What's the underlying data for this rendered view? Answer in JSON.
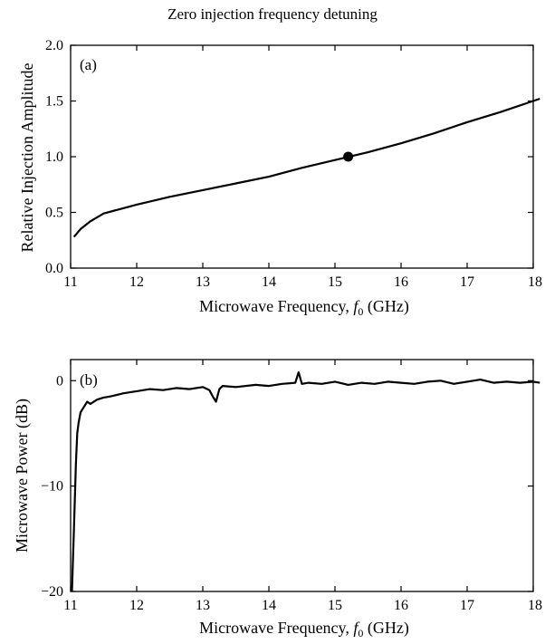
{
  "figure": {
    "title": "Zero injection frequency detuning"
  },
  "chart_data": [
    {
      "type": "line",
      "panel_label": "(a)",
      "xlabel_text": "Microwave Frequency, ",
      "xlabel_var": "f",
      "xlabel_sub": "0",
      "xlabel_unit": " (GHz)",
      "ylabel": "Relative Injection Amplitude",
      "xlim": [
        11,
        18
      ],
      "ylim": [
        0,
        2.0
      ],
      "xticks": [
        11,
        12,
        13,
        14,
        15,
        16,
        17,
        18
      ],
      "yticks": [
        0.0,
        0.5,
        1.0,
        1.5,
        2.0
      ],
      "ytick_labels": [
        "0.0",
        "0.5",
        "1.0",
        "1.5",
        "2.0"
      ],
      "grid": false,
      "series": [
        {
          "x": [
            11.05,
            11.15,
            11.3,
            11.5,
            12.0,
            12.5,
            13.0,
            13.5,
            14.0,
            14.5,
            15.0,
            15.5,
            16.0,
            16.5,
            17.0,
            17.5,
            18.0,
            18.1
          ],
          "y": [
            0.28,
            0.35,
            0.42,
            0.49,
            0.57,
            0.64,
            0.7,
            0.76,
            0.82,
            0.9,
            0.97,
            1.04,
            1.12,
            1.21,
            1.31,
            1.4,
            1.5,
            1.52
          ]
        }
      ],
      "marker": {
        "x": 15.2,
        "y": 1.0
      }
    },
    {
      "type": "line",
      "panel_label": "(b)",
      "xlabel_text": "Microwave Frequency, ",
      "xlabel_var": "f",
      "xlabel_sub": "0",
      "xlabel_unit": " (GHz)",
      "ylabel": "Microwave Power (dB)",
      "xlim": [
        11,
        18
      ],
      "ylim": [
        -20,
        2
      ],
      "xticks": [
        11,
        12,
        13,
        14,
        15,
        16,
        17,
        18
      ],
      "yticks": [
        -20,
        -10,
        0
      ],
      "ytick_labels": [
        "−20",
        "−10",
        "0"
      ],
      "grid": false,
      "series": [
        {
          "x": [
            11.02,
            11.05,
            11.08,
            11.1,
            11.12,
            11.15,
            11.2,
            11.25,
            11.3,
            11.4,
            11.5,
            11.6,
            11.8,
            12.0,
            12.2,
            12.4,
            12.6,
            12.8,
            13.0,
            13.1,
            13.15,
            13.2,
            13.25,
            13.3,
            13.5,
            13.8,
            14.0,
            14.2,
            14.4,
            14.45,
            14.5,
            14.6,
            14.8,
            15.0,
            15.2,
            15.4,
            15.6,
            15.8,
            16.0,
            16.2,
            16.4,
            16.6,
            16.8,
            17.0,
            17.2,
            17.4,
            17.6,
            17.8,
            18.0,
            18.1
          ],
          "y": [
            -20,
            -14,
            -8,
            -5,
            -4,
            -3,
            -2.5,
            -2,
            -2.2,
            -1.8,
            -1.6,
            -1.5,
            -1.2,
            -1.0,
            -0.8,
            -0.9,
            -0.7,
            -0.8,
            -0.6,
            -0.9,
            -1.5,
            -2.0,
            -0.8,
            -0.5,
            -0.6,
            -0.4,
            -0.5,
            -0.3,
            -0.2,
            0.8,
            -0.3,
            -0.2,
            -0.3,
            -0.1,
            -0.4,
            -0.2,
            -0.3,
            -0.1,
            -0.2,
            -0.3,
            -0.1,
            0.0,
            -0.3,
            -0.1,
            0.1,
            -0.2,
            -0.1,
            -0.2,
            -0.1,
            -0.2
          ]
        }
      ]
    }
  ]
}
